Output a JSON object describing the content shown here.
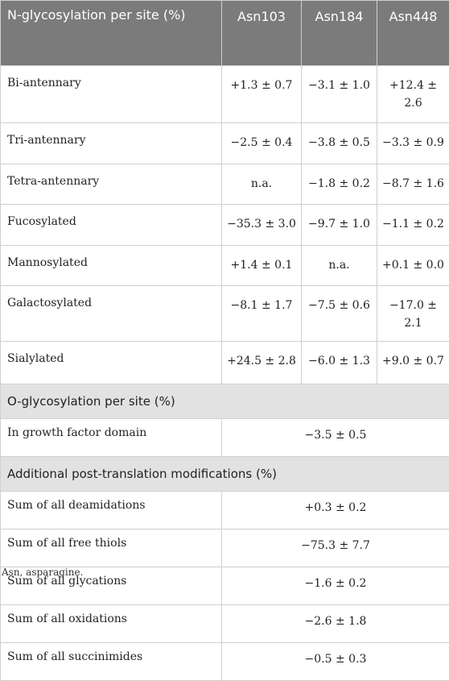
{
  "header": {
    "col0": "N-glycosylation per site (%)",
    "col1": "Asn103",
    "col2": "Asn184",
    "col3": "Asn448"
  },
  "n_rows": [
    {
      "label": "Bi-antennary",
      "v1": "+1.3 ± 0.7",
      "v2": "−3.1 ± 1.0",
      "v3": "+12.4 ± 2.6"
    },
    {
      "label": "Tri-antennary",
      "v1": "−2.5 ± 0.4",
      "v2": "−3.8 ± 0.5",
      "v3": "−3.3 ± 0.9"
    },
    {
      "label": "Tetra-antennary",
      "v1": "n.a.",
      "v2": "−1.8 ± 0.2",
      "v3": "−8.7 ± 1.6"
    },
    {
      "label": "Fucosylated",
      "v1": "−35.3 ± 3.0",
      "v2": "−9.7 ± 1.0",
      "v3": "−1.1 ± 0.2"
    },
    {
      "label": "Mannosylated",
      "v1": "+1.4 ± 0.1",
      "v2": "n.a.",
      "v3": "+0.1 ± 0.0"
    },
    {
      "label": "Galactosylated",
      "v1": "−8.1 ± 1.7",
      "v2": "−7.5 ± 0.6",
      "v3": "−17.0 ± 2.1"
    },
    {
      "label": "Sialylated",
      "v1": "+24.5 ± 2.8",
      "v2": "−6.0 ± 1.3",
      "v3": "+9.0 ± 0.7"
    }
  ],
  "o_section": {
    "title": "O-glycosylation per site (%)",
    "rows": [
      {
        "label": "In growth factor domain",
        "value": "−3.5 ± 0.5"
      }
    ]
  },
  "ptm_section": {
    "title": "Additional post-translation modifications (%)",
    "rows": [
      {
        "label": "Sum of all deamidations",
        "value": "+0.3 ± 0.2"
      },
      {
        "label": "Sum of all free thiols",
        "value": "−75.3 ± 7.7"
      },
      {
        "label": "Sum of all glycations",
        "value": "−1.6 ± 0.2"
      },
      {
        "label": "Sum of all oxidations",
        "value": "−2.6 ± 1.8"
      },
      {
        "label": "Sum of all succinimides",
        "value": "−0.5 ± 0.3"
      }
    ]
  },
  "footnote": "Asn, asparagine."
}
